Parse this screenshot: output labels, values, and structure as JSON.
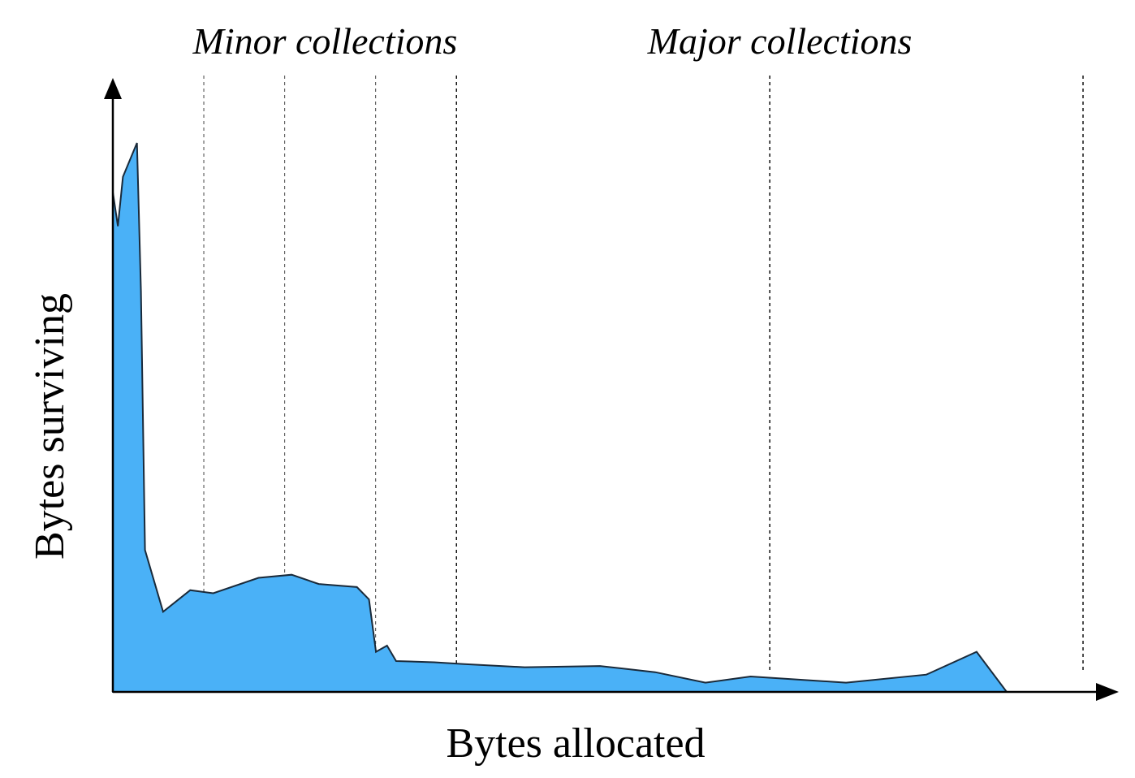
{
  "chart_data": {
    "type": "area",
    "title": "",
    "xlabel": "Bytes allocated",
    "ylabel": "Bytes surviving",
    "xlim": [
      0,
      100
    ],
    "ylim": [
      0,
      100
    ],
    "grid": false,
    "area_color": "#4ab1f7",
    "annotations": [
      {
        "text": "Minor collections",
        "x": 21
      },
      {
        "text": "Major collections",
        "x": 66
      }
    ],
    "collection_boundaries": [
      {
        "x": 9,
        "type": "minor"
      },
      {
        "x": 17,
        "type": "minor"
      },
      {
        "x": 26,
        "type": "minor"
      },
      {
        "x": 34,
        "type": "major"
      },
      {
        "x": 65,
        "type": "major"
      },
      {
        "x": 96,
        "type": "major"
      }
    ],
    "series": [
      {
        "points": [
          [
            0.0,
            81.0
          ],
          [
            0.5,
            75.5
          ],
          [
            1.0,
            83.5
          ],
          [
            2.4,
            89.0
          ],
          [
            2.8,
            65.0
          ],
          [
            3.2,
            23.0
          ],
          [
            5.0,
            13.0
          ],
          [
            7.7,
            16.5
          ],
          [
            10.0,
            16.0
          ],
          [
            14.5,
            18.5
          ],
          [
            17.8,
            19.0
          ],
          [
            20.5,
            17.5
          ],
          [
            24.3,
            17.0
          ],
          [
            25.5,
            15.0
          ],
          [
            26.2,
            6.5
          ],
          [
            27.3,
            7.5
          ],
          [
            28.2,
            5.0
          ],
          [
            32.0,
            4.8
          ],
          [
            35.0,
            4.5
          ],
          [
            41.0,
            4.0
          ],
          [
            48.5,
            4.2
          ],
          [
            54.0,
            3.2
          ],
          [
            59.0,
            1.5
          ],
          [
            63.5,
            2.5
          ],
          [
            73.0,
            1.5
          ],
          [
            81.0,
            2.8
          ],
          [
            86.0,
            6.5
          ],
          [
            89.0,
            0.0
          ]
        ]
      }
    ]
  }
}
